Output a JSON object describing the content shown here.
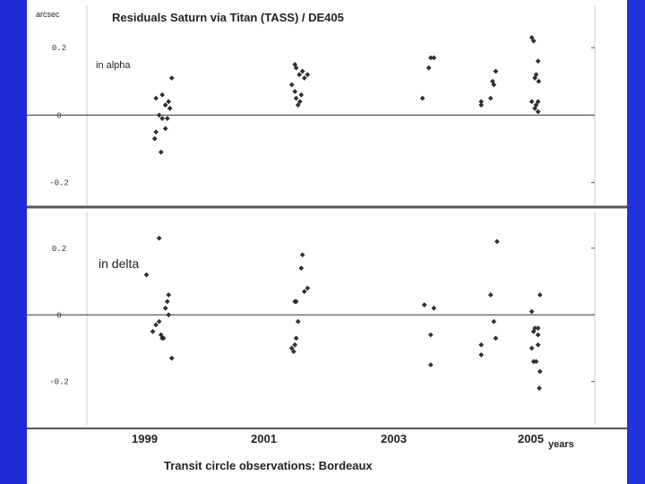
{
  "chart_data": {
    "type": "scatter",
    "title": "Residuals Saturn via Titan (TASS) / DE405",
    "unit_label": "arcsec",
    "xlabel": "years",
    "caption": "Transit circle observations:  Bordeaux",
    "x_ticks": [
      "1999",
      "2001",
      "2003",
      "2005"
    ],
    "panels": [
      {
        "label": "in alpha",
        "y_ticks": [
          "0.2",
          "0",
          "-0.2"
        ],
        "ylim": [
          -0.27,
          0.32
        ],
        "points": [
          [
            1999.2,
            0.05
          ],
          [
            1999.3,
            0.06
          ],
          [
            1999.25,
            0.0
          ],
          [
            1999.3,
            -0.01
          ],
          [
            1999.4,
            0.04
          ],
          [
            1999.35,
            0.03
          ],
          [
            1999.45,
            0.11
          ],
          [
            1999.38,
            -0.01
          ],
          [
            1999.35,
            -0.04
          ],
          [
            1999.2,
            -0.05
          ],
          [
            1999.18,
            -0.07
          ],
          [
            1999.28,
            -0.11
          ],
          [
            1999.42,
            0.02
          ],
          [
            2001.4,
            0.15
          ],
          [
            2001.42,
            0.14
          ],
          [
            2001.35,
            0.09
          ],
          [
            2001.47,
            0.12
          ],
          [
            2001.52,
            0.13
          ],
          [
            2001.55,
            0.11
          ],
          [
            2001.6,
            0.12
          ],
          [
            2001.4,
            0.07
          ],
          [
            2001.42,
            0.05
          ],
          [
            2001.48,
            0.04
          ],
          [
            2001.5,
            0.06
          ],
          [
            2001.45,
            0.03
          ],
          [
            2003.55,
            0.17
          ],
          [
            2003.6,
            0.17
          ],
          [
            2003.52,
            0.14
          ],
          [
            2003.42,
            0.05
          ],
          [
            2004.35,
            0.04
          ],
          [
            2004.35,
            0.03
          ],
          [
            2004.53,
            0.1
          ],
          [
            2004.55,
            0.09
          ],
          [
            2004.58,
            0.13
          ],
          [
            2004.5,
            0.05
          ],
          [
            2005.15,
            0.23
          ],
          [
            2005.18,
            0.22
          ],
          [
            2005.25,
            0.16
          ],
          [
            2005.22,
            0.12
          ],
          [
            2005.2,
            0.11
          ],
          [
            2005.26,
            0.1
          ],
          [
            2005.15,
            0.04
          ],
          [
            2005.22,
            0.03
          ],
          [
            2005.2,
            0.02
          ],
          [
            2005.25,
            0.01
          ],
          [
            2005.25,
            0.04
          ]
        ]
      },
      {
        "label": "in delta",
        "y_ticks": [
          "0.2",
          "0",
          "-0.2"
        ],
        "ylim": [
          -0.33,
          0.31
        ],
        "points": [
          [
            1999.05,
            0.12
          ],
          [
            1999.25,
            0.23
          ],
          [
            1999.4,
            0.06
          ],
          [
            1999.38,
            0.04
          ],
          [
            1999.35,
            0.02
          ],
          [
            1999.4,
            0.0
          ],
          [
            1999.25,
            -0.02
          ],
          [
            1999.2,
            -0.03
          ],
          [
            1999.15,
            -0.05
          ],
          [
            1999.28,
            -0.06
          ],
          [
            1999.3,
            -0.07
          ],
          [
            1999.32,
            -0.07
          ],
          [
            1999.45,
            -0.13
          ],
          [
            2001.4,
            0.04
          ],
          [
            2001.42,
            0.04
          ],
          [
            2001.5,
            0.14
          ],
          [
            2001.52,
            0.18
          ],
          [
            2001.55,
            0.07
          ],
          [
            2001.6,
            0.08
          ],
          [
            2001.45,
            -0.02
          ],
          [
            2001.42,
            -0.07
          ],
          [
            2001.4,
            -0.09
          ],
          [
            2001.35,
            -0.1
          ],
          [
            2001.38,
            -0.11
          ],
          [
            2003.45,
            0.03
          ],
          [
            2003.55,
            -0.06
          ],
          [
            2003.6,
            0.02
          ],
          [
            2003.55,
            -0.15
          ],
          [
            2004.35,
            -0.09
          ],
          [
            2004.35,
            -0.12
          ],
          [
            2004.5,
            0.06
          ],
          [
            2004.55,
            -0.02
          ],
          [
            2004.58,
            -0.07
          ],
          [
            2004.6,
            0.22
          ],
          [
            2005.15,
            0.01
          ],
          [
            2005.2,
            -0.04
          ],
          [
            2005.25,
            -0.04
          ],
          [
            2005.18,
            -0.05
          ],
          [
            2005.25,
            -0.06
          ],
          [
            2005.25,
            -0.09
          ],
          [
            2005.15,
            -0.1
          ],
          [
            2005.18,
            -0.14
          ],
          [
            2005.22,
            -0.14
          ],
          [
            2005.28,
            -0.17
          ],
          [
            2005.27,
            -0.22
          ],
          [
            2005.28,
            0.06
          ]
        ]
      }
    ]
  }
}
